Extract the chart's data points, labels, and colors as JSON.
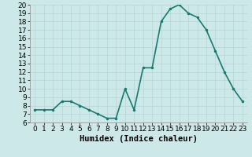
{
  "x": [
    0,
    1,
    2,
    3,
    4,
    5,
    6,
    7,
    8,
    9,
    10,
    11,
    12,
    13,
    14,
    15,
    16,
    17,
    18,
    19,
    20,
    21,
    22,
    23
  ],
  "y": [
    7.5,
    7.5,
    7.5,
    8.5,
    8.5,
    8.0,
    7.5,
    7.0,
    6.5,
    6.5,
    10.0,
    7.5,
    12.5,
    12.5,
    18.0,
    19.5,
    20.0,
    19.0,
    18.5,
    17.0,
    14.5,
    12.0,
    10.0,
    8.5
  ],
  "line_color": "#1a7a6e",
  "bg_color": "#cde8e8",
  "grid_color": "#b8d8d8",
  "xlabel": "Humidex (Indice chaleur)",
  "xlim": [
    -0.5,
    23.5
  ],
  "ylim": [
    6,
    20
  ],
  "xtick_labels": [
    "0",
    "1",
    "2",
    "3",
    "4",
    "5",
    "6",
    "7",
    "8",
    "9",
    "1011121314151617181920212223"
  ],
  "yticks": [
    6,
    7,
    8,
    9,
    10,
    11,
    12,
    13,
    14,
    15,
    16,
    17,
    18,
    19,
    20
  ],
  "markersize": 3,
  "linewidth": 1.2,
  "tick_fontsize": 6.5,
  "xlabel_fontsize": 7.5
}
